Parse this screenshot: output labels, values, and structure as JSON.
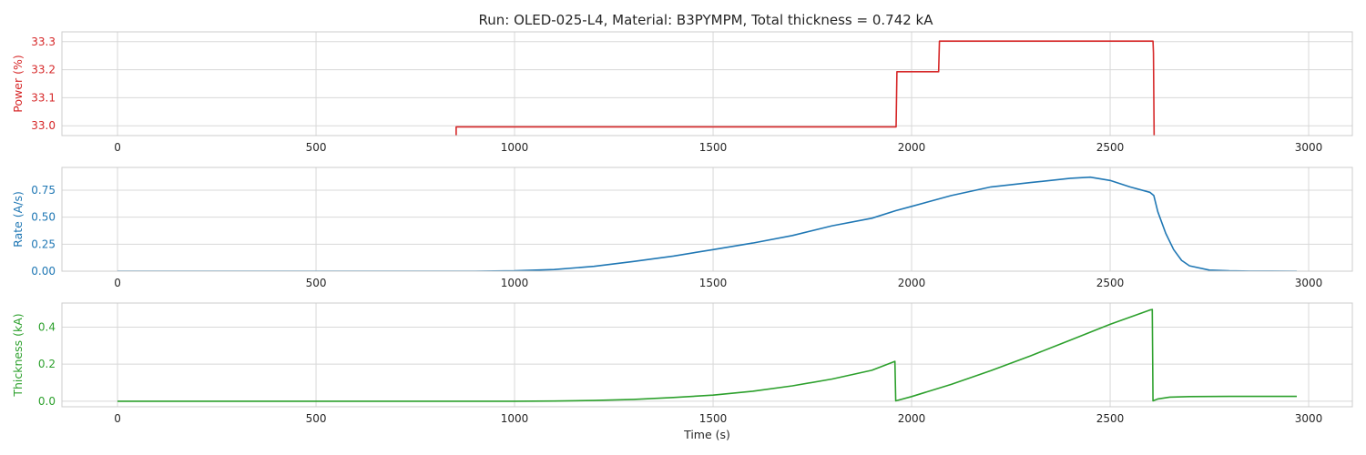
{
  "title": "Run: OLED-025-L4, Material: B3PYMPM, Total thickness = 0.742 kA",
  "chart_data": [
    {
      "type": "line",
      "ylabel": "Power (%)",
      "color": "#d62728",
      "xlim": [
        -140,
        3110
      ],
      "ylim": [
        32.965,
        33.335
      ],
      "xticks": [
        0,
        500,
        1000,
        1500,
        2000,
        2500,
        3000
      ],
      "yticks": [
        "33.0",
        "33.1",
        "33.2",
        "33.3"
      ],
      "series": [
        {
          "x": [
            853,
            853,
            1961,
            1963,
            2068,
            2070,
            2608,
            2609,
            2611
          ],
          "y": [
            32.94,
            32.996,
            32.996,
            33.193,
            33.193,
            33.302,
            33.302,
            33.26,
            32.94
          ]
        }
      ]
    },
    {
      "type": "line",
      "ylabel": "Rate (A/s)",
      "color": "#1f77b4",
      "xlim": [
        -140,
        3110
      ],
      "ylim": [
        0,
        0.96
      ],
      "xticks": [
        0,
        500,
        1000,
        1500,
        2000,
        2500,
        3000
      ],
      "yticks": [
        "0.00",
        "0.25",
        "0.50",
        "0.75"
      ],
      "series": [
        {
          "x": [
            0,
            500,
            900,
            1000,
            1100,
            1200,
            1300,
            1400,
            1500,
            1600,
            1700,
            1800,
            1900,
            1960,
            2000,
            2100,
            2200,
            2300,
            2400,
            2450,
            2500,
            2550,
            2600,
            2610,
            2620,
            2640,
            2660,
            2680,
            2700,
            2750,
            2800,
            2850,
            2970
          ],
          "y": [
            0,
            0,
            0,
            0.003,
            0.015,
            0.045,
            0.09,
            0.14,
            0.2,
            0.26,
            0.33,
            0.42,
            0.49,
            0.56,
            0.6,
            0.7,
            0.78,
            0.82,
            0.86,
            0.87,
            0.84,
            0.78,
            0.73,
            0.7,
            0.55,
            0.35,
            0.2,
            0.1,
            0.05,
            0.01,
            0.003,
            0.001,
            0
          ]
        }
      ]
    },
    {
      "type": "line",
      "ylabel": "Thickness (kA)",
      "xlabel": "Time (s)",
      "color": "#2ca02c",
      "xlim": [
        -140,
        3110
      ],
      "ylim": [
        -0.03,
        0.53
      ],
      "xticks": [
        0,
        500,
        1000,
        1500,
        2000,
        2500,
        3000
      ],
      "yticks": [
        "0.0",
        "0.2",
        "0.4"
      ],
      "series": [
        {
          "x": [
            0,
            1000,
            1100,
            1200,
            1300,
            1400,
            1500,
            1600,
            1700,
            1800,
            1900,
            1958,
            1960,
            2000,
            2100,
            2200,
            2300,
            2400,
            2500,
            2600,
            2606,
            2608,
            2620,
            2650,
            2700,
            2800,
            2970
          ],
          "y": [
            0,
            0,
            0.001,
            0.004,
            0.01,
            0.02,
            0.033,
            0.054,
            0.083,
            0.12,
            0.167,
            0.215,
            0.002,
            0.025,
            0.091,
            0.165,
            0.245,
            0.33,
            0.415,
            0.492,
            0.495,
            0.002,
            0.012,
            0.022,
            0.025,
            0.026,
            0.026
          ]
        }
      ]
    }
  ]
}
